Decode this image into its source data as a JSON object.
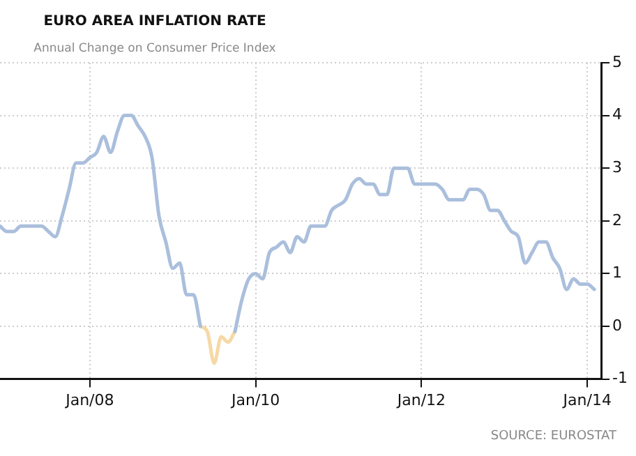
{
  "chart_data": {
    "type": "line",
    "title": "EURO AREA INFLATION RATE",
    "subtitle": "Annual Change on Consumer Price Index",
    "annotations": [
      "SOURCE: EUROSTAT"
    ],
    "x": [
      "2006-12",
      "2007-01",
      "2007-02",
      "2007-03",
      "2007-04",
      "2007-05",
      "2007-06",
      "2007-07",
      "2007-08",
      "2007-09",
      "2007-10",
      "2007-11",
      "2007-12",
      "2008-01",
      "2008-02",
      "2008-03",
      "2008-04",
      "2008-05",
      "2008-06",
      "2008-07",
      "2008-08",
      "2008-09",
      "2008-10",
      "2008-11",
      "2008-12",
      "2009-01",
      "2009-02",
      "2009-03",
      "2009-04",
      "2009-05",
      "2009-06",
      "2009-07",
      "2009-08",
      "2009-09",
      "2009-10",
      "2009-11",
      "2009-12",
      "2010-01",
      "2010-02",
      "2010-03",
      "2010-04",
      "2010-05",
      "2010-06",
      "2010-07",
      "2010-08",
      "2010-09",
      "2010-10",
      "2010-11",
      "2010-12",
      "2011-01",
      "2011-02",
      "2011-03",
      "2011-04",
      "2011-05",
      "2011-06",
      "2011-07",
      "2011-08",
      "2011-09",
      "2011-10",
      "2011-11",
      "2011-12",
      "2012-01",
      "2012-02",
      "2012-03",
      "2012-04",
      "2012-05",
      "2012-06",
      "2012-07",
      "2012-08",
      "2012-09",
      "2012-10",
      "2012-11",
      "2012-12",
      "2013-01",
      "2013-02",
      "2013-03",
      "2013-04",
      "2013-05",
      "2013-06",
      "2013-07",
      "2013-08",
      "2013-09",
      "2013-10",
      "2013-11",
      "2013-12",
      "2014-01",
      "2014-02"
    ],
    "series": [
      {
        "color": "#aabfdc",
        "values": [
          1.9,
          1.8,
          1.8,
          1.9,
          1.9,
          1.9,
          1.9,
          1.8,
          1.7,
          2.1,
          2.6,
          3.1,
          3.1,
          3.2,
          3.3,
          3.6,
          3.3,
          3.7,
          4.0,
          4.0,
          3.8,
          3.6,
          3.2,
          2.1,
          1.6,
          1.1,
          1.2,
          0.6,
          0.6,
          0.0,
          null,
          null,
          null,
          null,
          -0.1,
          0.5,
          0.9,
          1.0,
          0.9,
          1.4,
          1.5,
          1.6,
          1.4,
          1.7,
          1.6,
          1.9,
          1.9,
          1.9,
          2.2,
          2.3,
          2.4,
          2.7,
          2.8,
          2.7,
          2.7,
          2.5,
          2.5,
          3.0,
          3.0,
          3.0,
          2.7,
          2.7,
          2.7,
          2.7,
          2.6,
          2.4,
          2.4,
          2.4,
          2.6,
          2.6,
          2.5,
          2.2,
          2.2,
          2.0,
          1.8,
          1.7,
          1.2,
          1.4,
          1.6,
          1.6,
          1.3,
          1.1,
          0.7,
          0.9,
          0.8,
          0.8,
          0.7
        ]
      },
      {
        "color": "#f5d9a6",
        "values": [
          null,
          null,
          null,
          null,
          null,
          null,
          null,
          null,
          null,
          null,
          null,
          null,
          null,
          null,
          null,
          null,
          null,
          null,
          null,
          null,
          null,
          null,
          null,
          null,
          null,
          null,
          null,
          null,
          null,
          0.0,
          -0.1,
          -0.7,
          -0.2,
          -0.3,
          -0.1,
          null,
          null,
          null,
          null,
          null,
          null,
          null,
          null,
          null,
          null,
          null,
          null,
          null,
          null,
          null,
          null,
          null,
          null,
          null,
          null,
          null,
          null,
          null,
          null,
          null,
          null,
          null,
          null,
          null,
          null,
          null,
          null,
          null,
          null,
          null,
          null,
          null,
          null,
          null,
          null,
          null,
          null,
          null,
          null,
          null,
          null,
          null,
          null,
          null,
          null,
          null,
          null
        ]
      }
    ],
    "xlim": [
      "2006-12",
      "2014-03"
    ],
    "xticks": [
      {
        "value": "2008-01",
        "label": "Jan/08"
      },
      {
        "value": "2010-01",
        "label": "Jan/10"
      },
      {
        "value": "2012-01",
        "label": "Jan/12"
      },
      {
        "value": "2014-01",
        "label": "Jan/14"
      }
    ],
    "ylim": [
      -1,
      5
    ],
    "yticks": [
      -1,
      0,
      1,
      2,
      3,
      4,
      5
    ],
    "grid": true,
    "legend": false,
    "marker": "none",
    "line_style": "solid"
  }
}
